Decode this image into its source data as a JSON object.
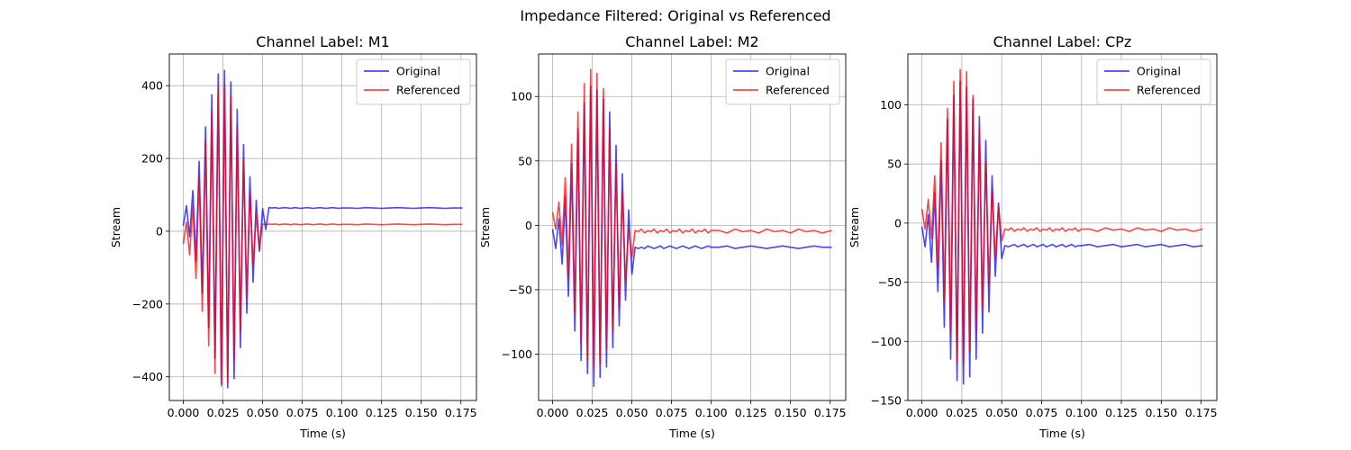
{
  "figure": {
    "suptitle": "Impedance Filtered: Original vs Referenced"
  },
  "colors": {
    "original": "#0000ff",
    "referenced": "#ff0000",
    "grid": "#b0b0b0"
  },
  "chart_data": [
    {
      "type": "line",
      "title": "Channel Label: M1",
      "xlabel": "Time (s)",
      "ylabel": "Stream",
      "xlim": [
        -0.0088,
        0.1848
      ],
      "ylim": [
        -465,
        487
      ],
      "xticks": [
        0.0,
        0.025,
        0.05,
        0.075,
        0.1,
        0.125,
        0.15,
        0.175
      ],
      "xtick_labels": [
        "0.000",
        "0.025",
        "0.050",
        "0.075",
        "0.100",
        "0.125",
        "0.150",
        "0.175"
      ],
      "yticks": [
        -400,
        -200,
        0,
        200,
        400
      ],
      "ytick_labels": [
        "−400",
        "−200",
        "0",
        "200",
        "400"
      ],
      "grid": true,
      "legend": "top-right",
      "series": [
        {
          "name": "Original",
          "color": "#0000ff",
          "x": [
            0.0,
            0.002,
            0.004,
            0.006,
            0.008,
            0.01,
            0.012,
            0.014,
            0.016,
            0.018,
            0.02,
            0.022,
            0.024,
            0.026,
            0.028,
            0.03,
            0.032,
            0.034,
            0.036,
            0.038,
            0.04,
            0.042,
            0.044,
            0.046,
            0.048,
            0.05,
            0.052,
            0.054,
            0.056,
            0.058,
            0.06,
            0.062,
            0.064,
            0.066,
            0.068,
            0.07,
            0.072,
            0.074,
            0.076,
            0.078,
            0.08,
            0.082,
            0.084,
            0.086,
            0.088,
            0.09,
            0.092,
            0.094,
            0.096,
            0.098,
            0.1,
            0.105,
            0.11,
            0.115,
            0.12,
            0.125,
            0.13,
            0.135,
            0.14,
            0.145,
            0.15,
            0.155,
            0.16,
            0.165,
            0.17,
            0.176
          ],
          "y": [
            15,
            70,
            -15,
            112,
            -80,
            192,
            -170,
            287,
            -265,
            375,
            -350,
            432,
            -420,
            442,
            -430,
            410,
            -405,
            335,
            -320,
            238,
            -225,
            150,
            -140,
            85,
            -55,
            62,
            5,
            65,
            64,
            65,
            63,
            64,
            65,
            64,
            63,
            65,
            64,
            63,
            64,
            65,
            64,
            63,
            64,
            65,
            64,
            63,
            64,
            65,
            64,
            63,
            64,
            64,
            63,
            65,
            64,
            63,
            64,
            65,
            64,
            63,
            64,
            65,
            64,
            63,
            64,
            64
          ]
        },
        {
          "name": "Referenced",
          "color": "#ff0000",
          "x": [
            0.0,
            0.002,
            0.004,
            0.006,
            0.008,
            0.01,
            0.012,
            0.014,
            0.016,
            0.018,
            0.02,
            0.022,
            0.024,
            0.026,
            0.028,
            0.03,
            0.032,
            0.034,
            0.036,
            0.038,
            0.04,
            0.042,
            0.044,
            0.046,
            0.048,
            0.05,
            0.052,
            0.054,
            0.056,
            0.058,
            0.06,
            0.062,
            0.064,
            0.066,
            0.068,
            0.07,
            0.072,
            0.074,
            0.076,
            0.078,
            0.08,
            0.082,
            0.084,
            0.086,
            0.088,
            0.09,
            0.092,
            0.094,
            0.096,
            0.098,
            0.1,
            0.105,
            0.11,
            0.115,
            0.12,
            0.125,
            0.13,
            0.135,
            0.14,
            0.145,
            0.15,
            0.155,
            0.16,
            0.165,
            0.17,
            0.176
          ],
          "y": [
            -35,
            25,
            -65,
            70,
            -130,
            150,
            -220,
            245,
            -315,
            335,
            -390,
            395,
            -425,
            405,
            -415,
            370,
            -355,
            290,
            -275,
            195,
            -180,
            110,
            -95,
            45,
            -50,
            20,
            18,
            20,
            19,
            20,
            18,
            19,
            20,
            19,
            18,
            20,
            19,
            18,
            19,
            20,
            19,
            18,
            19,
            20,
            19,
            18,
            19,
            20,
            19,
            18,
            19,
            19,
            18,
            20,
            19,
            18,
            19,
            20,
            19,
            18,
            19,
            20,
            19,
            18,
            19,
            19
          ]
        }
      ]
    },
    {
      "type": "line",
      "title": "Channel Label: M2",
      "xlabel": "Time (s)",
      "ylabel": "Stream",
      "xlim": [
        -0.0088,
        0.1848
      ],
      "ylim": [
        -136,
        133
      ],
      "xticks": [
        0.0,
        0.025,
        0.05,
        0.075,
        0.1,
        0.125,
        0.15,
        0.175
      ],
      "xtick_labels": [
        "0.000",
        "0.025",
        "0.050",
        "0.075",
        "0.100",
        "0.125",
        "0.150",
        "0.175"
      ],
      "yticks": [
        -100,
        -50,
        0,
        50,
        100
      ],
      "ytick_labels": [
        "−100",
        "−50",
        "0",
        "50",
        "100"
      ],
      "grid": true,
      "legend": "top-right",
      "series": [
        {
          "name": "Original",
          "color": "#0000ff",
          "x": [
            0.0,
            0.002,
            0.004,
            0.006,
            0.008,
            0.01,
            0.012,
            0.014,
            0.016,
            0.018,
            0.02,
            0.022,
            0.024,
            0.026,
            0.028,
            0.03,
            0.032,
            0.034,
            0.036,
            0.038,
            0.04,
            0.042,
            0.044,
            0.046,
            0.048,
            0.05,
            0.052,
            0.054,
            0.056,
            0.058,
            0.06,
            0.062,
            0.064,
            0.066,
            0.068,
            0.07,
            0.072,
            0.074,
            0.076,
            0.078,
            0.08,
            0.082,
            0.084,
            0.086,
            0.088,
            0.09,
            0.092,
            0.094,
            0.096,
            0.098,
            0.1,
            0.105,
            0.11,
            0.115,
            0.12,
            0.125,
            0.13,
            0.135,
            0.14,
            0.145,
            0.15,
            0.155,
            0.16,
            0.165,
            0.17,
            0.176
          ],
          "y": [
            -3,
            -18,
            5,
            -30,
            22,
            -55,
            48,
            -82,
            75,
            -105,
            95,
            -115,
            108,
            -125,
            105,
            -118,
            98,
            -110,
            88,
            -95,
            62,
            -78,
            40,
            -58,
            12,
            -38,
            -17,
            -18,
            -17,
            -18,
            -16,
            -17,
            -18,
            -17,
            -16,
            -18,
            -17,
            -16,
            -17,
            -18,
            -17,
            -16,
            -17,
            -18,
            -17,
            -16,
            -17,
            -18,
            -17,
            -16,
            -17,
            -17,
            -16,
            -18,
            -17,
            -16,
            -17,
            -18,
            -17,
            -16,
            -17,
            -18,
            -17,
            -16,
            -17,
            -17
          ]
        },
        {
          "name": "Referenced",
          "color": "#ff0000",
          "x": [
            0.0,
            0.002,
            0.004,
            0.006,
            0.008,
            0.01,
            0.012,
            0.014,
            0.016,
            0.018,
            0.02,
            0.022,
            0.024,
            0.026,
            0.028,
            0.03,
            0.032,
            0.034,
            0.036,
            0.038,
            0.04,
            0.042,
            0.044,
            0.046,
            0.048,
            0.05,
            0.052,
            0.054,
            0.056,
            0.058,
            0.06,
            0.062,
            0.064,
            0.066,
            0.068,
            0.07,
            0.072,
            0.074,
            0.076,
            0.078,
            0.08,
            0.082,
            0.084,
            0.086,
            0.088,
            0.09,
            0.092,
            0.094,
            0.096,
            0.098,
            0.1,
            0.105,
            0.11,
            0.115,
            0.12,
            0.125,
            0.13,
            0.135,
            0.14,
            0.145,
            0.15,
            0.155,
            0.16,
            0.165,
            0.17,
            0.176
          ],
          "y": [
            10,
            -3,
            18,
            -15,
            37,
            -40,
            63,
            -68,
            88,
            -92,
            110,
            -105,
            121,
            -112,
            118,
            -108,
            106,
            -96,
            76,
            -82,
            48,
            -65,
            26,
            -43,
            -3,
            -25,
            -4,
            -5,
            -3,
            -6,
            -4,
            -5,
            -3,
            -6,
            -4,
            -5,
            -3,
            -6,
            -4,
            -5,
            -3,
            -6,
            -4,
            -5,
            -3,
            -6,
            -4,
            -5,
            -3,
            -6,
            -4,
            -4,
            -6,
            -3,
            -5,
            -4,
            -6,
            -3,
            -5,
            -4,
            -6,
            -3,
            -5,
            -4,
            -6,
            -4
          ]
        }
      ]
    },
    {
      "type": "line",
      "title": "Channel Label: CPz",
      "xlabel": "Time (s)",
      "ylabel": "Stream",
      "xlim": [
        -0.0088,
        0.1848
      ],
      "ylim": [
        -150,
        143
      ],
      "xticks": [
        0.0,
        0.025,
        0.05,
        0.075,
        0.1,
        0.125,
        0.15,
        0.175
      ],
      "xtick_labels": [
        "0.000",
        "0.025",
        "0.050",
        "0.075",
        "0.100",
        "0.125",
        "0.150",
        "0.175"
      ],
      "yticks": [
        -150,
        -100,
        -50,
        0,
        50,
        100
      ],
      "ytick_labels": [
        "−150",
        "−100",
        "−50",
        "0",
        "50",
        "100"
      ],
      "grid": true,
      "legend": "top-right",
      "series": [
        {
          "name": "Original",
          "color": "#0000ff",
          "x": [
            0.0,
            0.002,
            0.004,
            0.006,
            0.008,
            0.01,
            0.012,
            0.014,
            0.016,
            0.018,
            0.02,
            0.022,
            0.024,
            0.026,
            0.028,
            0.03,
            0.032,
            0.034,
            0.036,
            0.038,
            0.04,
            0.042,
            0.044,
            0.046,
            0.048,
            0.05,
            0.052,
            0.054,
            0.056,
            0.058,
            0.06,
            0.062,
            0.064,
            0.066,
            0.068,
            0.07,
            0.072,
            0.074,
            0.076,
            0.078,
            0.08,
            0.082,
            0.084,
            0.086,
            0.088,
            0.09,
            0.092,
            0.094,
            0.096,
            0.098,
            0.1,
            0.105,
            0.11,
            0.115,
            0.12,
            0.125,
            0.13,
            0.135,
            0.14,
            0.145,
            0.15,
            0.155,
            0.16,
            0.165,
            0.17,
            0.176
          ],
          "y": [
            -3,
            -20,
            7,
            -33,
            26,
            -58,
            53,
            -88,
            88,
            -115,
            108,
            -133,
            120,
            -136,
            115,
            -130,
            105,
            -115,
            90,
            -93,
            70,
            -75,
            40,
            -45,
            17,
            -30,
            -19,
            -20,
            -19,
            -18,
            -20,
            -19,
            -18,
            -20,
            -19,
            -18,
            -20,
            -19,
            -18,
            -20,
            -19,
            -18,
            -20,
            -19,
            -18,
            -20,
            -19,
            -18,
            -20,
            -19,
            -19,
            -18,
            -20,
            -19,
            -18,
            -20,
            -19,
            -18,
            -20,
            -19,
            -18,
            -20,
            -19,
            -18,
            -20,
            -19
          ]
        },
        {
          "name": "Referenced",
          "color": "#ff0000",
          "x": [
            0.0,
            0.002,
            0.004,
            0.006,
            0.008,
            0.01,
            0.012,
            0.014,
            0.016,
            0.018,
            0.02,
            0.022,
            0.024,
            0.026,
            0.028,
            0.03,
            0.032,
            0.034,
            0.036,
            0.038,
            0.04,
            0.042,
            0.044,
            0.046,
            0.048,
            0.05,
            0.052,
            0.054,
            0.056,
            0.058,
            0.06,
            0.062,
            0.064,
            0.066,
            0.068,
            0.07,
            0.072,
            0.074,
            0.076,
            0.078,
            0.08,
            0.082,
            0.084,
            0.086,
            0.088,
            0.09,
            0.092,
            0.094,
            0.096,
            0.098,
            0.1,
            0.105,
            0.11,
            0.115,
            0.12,
            0.125,
            0.13,
            0.135,
            0.14,
            0.145,
            0.15,
            0.155,
            0.16,
            0.165,
            0.17,
            0.176
          ],
          "y": [
            12,
            -5,
            20,
            -13,
            40,
            -38,
            68,
            -65,
            97,
            -95,
            120,
            -118,
            130,
            -120,
            128,
            -108,
            108,
            -92,
            82,
            -72,
            52,
            -52,
            29,
            -30,
            15,
            -15,
            -5,
            -6,
            -4,
            -7,
            -5,
            -6,
            -4,
            -7,
            -5,
            -6,
            -4,
            -7,
            -5,
            -6,
            -4,
            -7,
            -5,
            -6,
            -4,
            -7,
            -5,
            -6,
            -4,
            -7,
            -5,
            -5,
            -7,
            -4,
            -6,
            -5,
            -7,
            -4,
            -6,
            -5,
            -7,
            -4,
            -6,
            -5,
            -7,
            -5
          ]
        }
      ]
    }
  ]
}
